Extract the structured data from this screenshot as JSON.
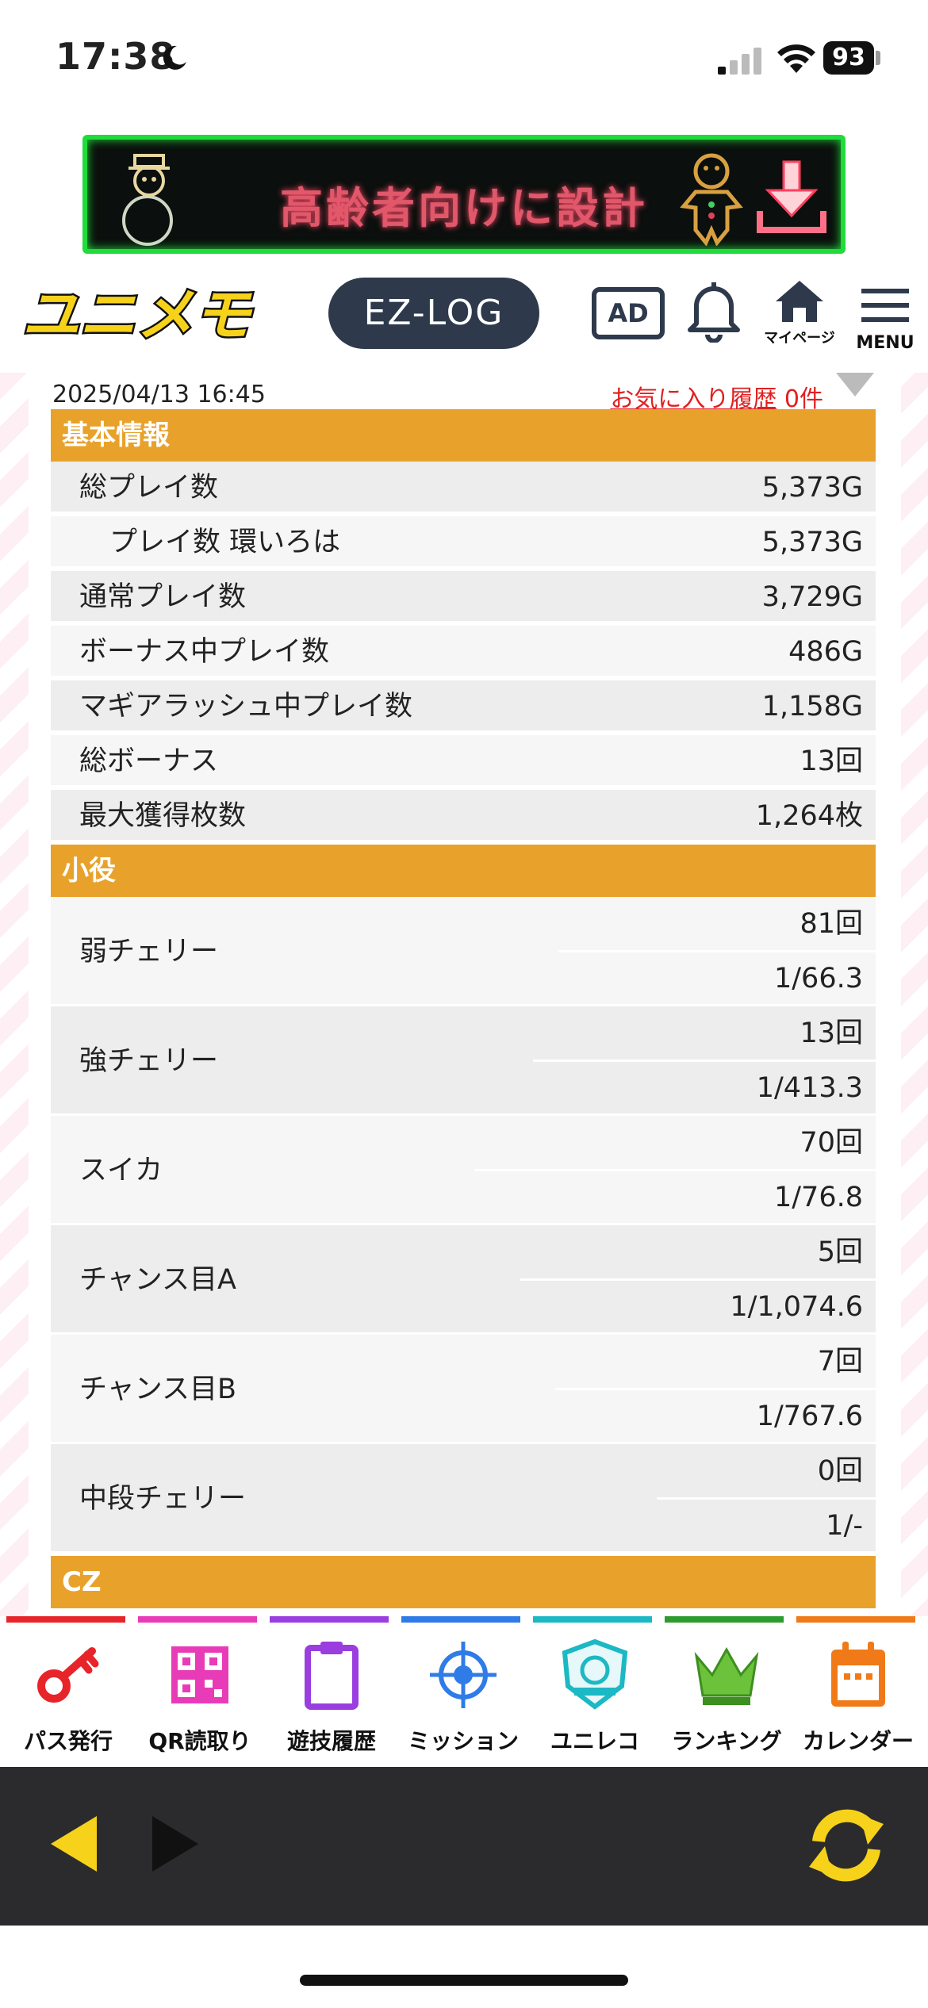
{
  "status_bar": {
    "time": "17:38",
    "battery": "93"
  },
  "ad_banner": {
    "text": "高齢者向けに設計"
  },
  "header": {
    "logo": "ユニメモ",
    "ezlog_label": "EZ-LOG",
    "ad_label": "AD",
    "mypage_label": "マイページ",
    "menu_label": "MENU"
  },
  "meta": {
    "date": "2025/04/13 16:45",
    "favorite_link": "お気に入り履歴",
    "favorite_count": "0件"
  },
  "sections": {
    "basic": {
      "title": "基本情報",
      "rows": [
        {
          "label": "総プレイ数",
          "value": "5,373G"
        },
        {
          "label": "プレイ数 環いろは",
          "value": "5,373G"
        },
        {
          "label": "通常プレイ数",
          "value": "3,729G"
        },
        {
          "label": "ボーナス中プレイ数",
          "value": "486G"
        },
        {
          "label": "マギアラッシュ中プレイ数",
          "value": "1,158G"
        },
        {
          "label": "総ボーナス",
          "value": "13回"
        },
        {
          "label": "最大獲得枚数",
          "value": "1,264枚"
        }
      ]
    },
    "koyaku": {
      "title": "小役",
      "rows": [
        {
          "label": "弱チェリー",
          "count": "81回",
          "prob": "1/66.3"
        },
        {
          "label": "強チェリー",
          "count": "13回",
          "prob": "1/413.3"
        },
        {
          "label": "スイカ",
          "count": "70回",
          "prob": "1/76.8"
        },
        {
          "label": "チャンス目A",
          "count": "5回",
          "prob": "1/1,074.6"
        },
        {
          "label": "チャンス目B",
          "count": "7回",
          "prob": "1/767.6"
        },
        {
          "label": "中段チェリー",
          "count": "0回",
          "prob": "1/-"
        }
      ]
    },
    "cz": {
      "title": "CZ"
    }
  },
  "bottom_nav": {
    "items": [
      {
        "label": "パス発行",
        "color": "#e8242b"
      },
      {
        "label": "QR読取り",
        "color": "#e83bb8"
      },
      {
        "label": "遊技履歴",
        "color": "#9a3ee0"
      },
      {
        "label": "ミッション",
        "color": "#2f7ce8"
      },
      {
        "label": "ユニレコ",
        "color": "#1cb8c4"
      },
      {
        "label": "ランキング",
        "color": "#2e9b2e"
      },
      {
        "label": "カレンダー",
        "color": "#f07a18"
      }
    ]
  },
  "colors": {
    "section_header": "#e8a22b",
    "browser_bar": "#2b2b2d",
    "arrow_yellow": "#f6d21b"
  }
}
